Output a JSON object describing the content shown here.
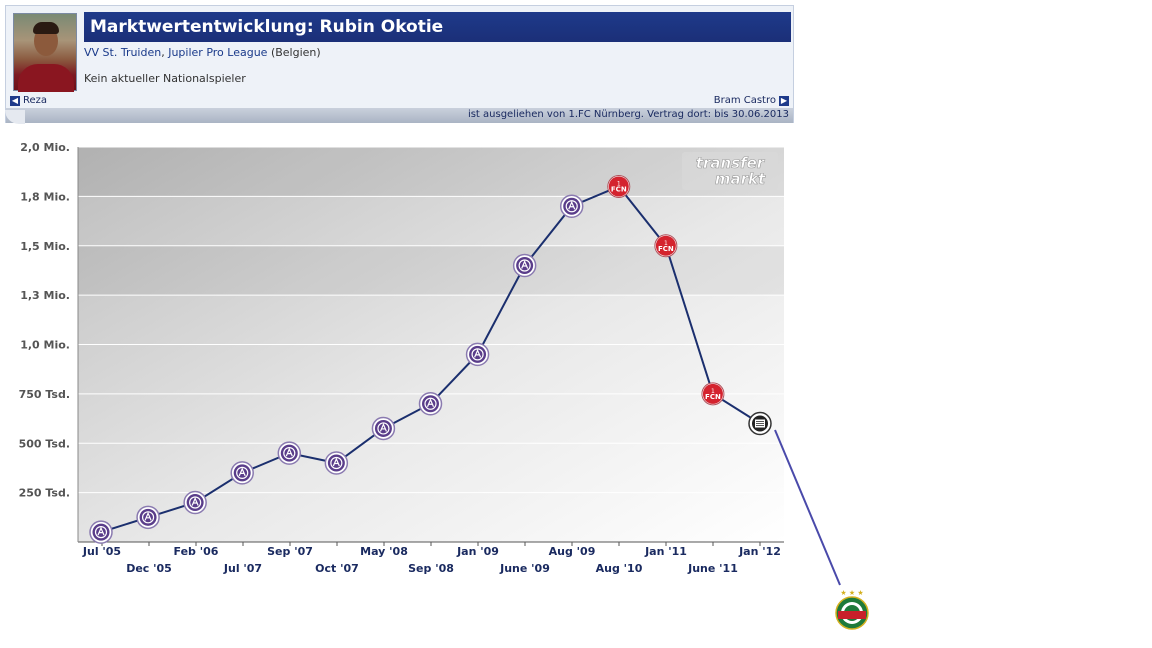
{
  "header": {
    "title": "Marktwertentwicklung: Rubin Okotie",
    "club": "VV St. Truiden",
    "league": "Jupiler Pro League",
    "country": "(Belgien)",
    "nation_status": "Kein aktueller Nationalspieler",
    "prev_player": "Reza",
    "next_player": "Bram Castro",
    "loan_info": "ist ausgeliehen von 1.FC Nürnberg. Vertrag dort: bis 30.06.2013"
  },
  "watermark": {
    "line1": "transfer",
    "line2": "markt"
  },
  "colors": {
    "line": "#1b2f6e",
    "austria": "#5a3d8a",
    "fcn": "#d4232e",
    "sturm": "#222222",
    "title_bar": "#1e3a8a"
  },
  "chart_data": {
    "type": "line",
    "y_ticks": [
      "2,0 Mio.",
      "1,8 Mio.",
      "1,5 Mio.",
      "1,3 Mio.",
      "1,0 Mio.",
      "750 Tsd.",
      "500 Tsd.",
      "250 Tsd."
    ],
    "y_tick_values": [
      2000000,
      1750000,
      1500000,
      1250000,
      1000000,
      750000,
      500000,
      250000
    ],
    "ylim": [
      0,
      2000000
    ],
    "x_ticks_upper": [
      "Jul '05",
      "Feb '06",
      "Sep '07",
      "May '08",
      "Jan '09",
      "Aug '09",
      "Jan '11",
      "Jan '12"
    ],
    "x_ticks_lower": [
      "Dec '05",
      "Jul '07",
      "Oct '07",
      "Sep '08",
      "June '09",
      "Aug '10",
      "June '11"
    ],
    "points": [
      {
        "value": 50000,
        "club": "austria"
      },
      {
        "value": 125000,
        "club": "austria"
      },
      {
        "value": 200000,
        "club": "austria"
      },
      {
        "value": 350000,
        "club": "austria"
      },
      {
        "value": 450000,
        "club": "austria"
      },
      {
        "value": 400000,
        "club": "austria"
      },
      {
        "value": 575000,
        "club": "austria"
      },
      {
        "value": 700000,
        "club": "austria"
      },
      {
        "value": 950000,
        "club": "austria"
      },
      {
        "value": 1400000,
        "club": "austria"
      },
      {
        "value": 1700000,
        "club": "austria"
      },
      {
        "value": 1800000,
        "club": "fcn"
      },
      {
        "value": 1500000,
        "club": "fcn"
      },
      {
        "value": 750000,
        "club": "fcn"
      },
      {
        "value": 600000,
        "club": "sturm"
      }
    ],
    "fcn_badge_text": "1 FCN"
  }
}
